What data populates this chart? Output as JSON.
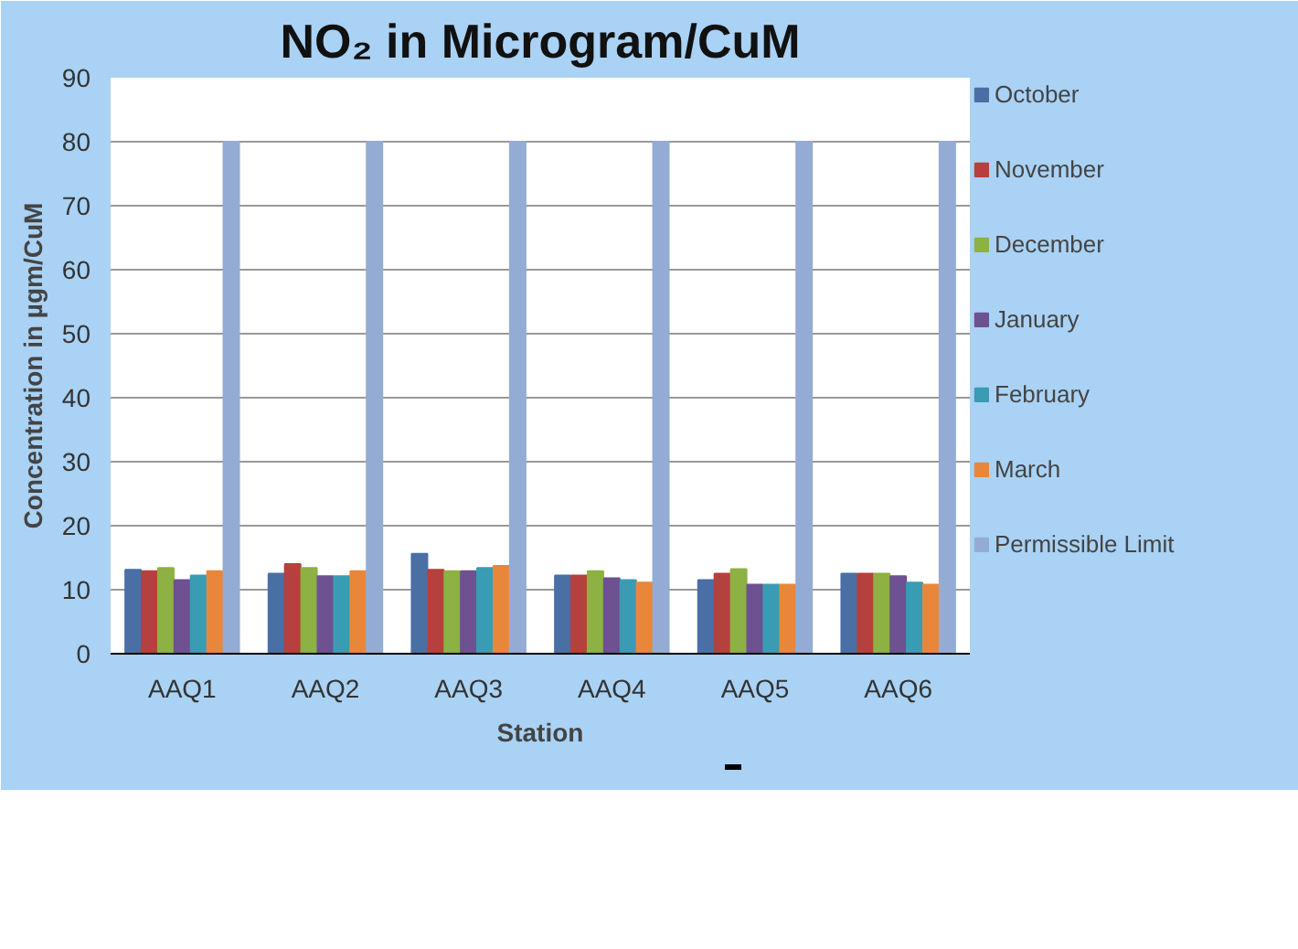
{
  "chart_data": {
    "type": "bar",
    "title": "NO₂ in Microgram/CuM",
    "xlabel": "Station",
    "ylabel": "Concentration in µgm/CuM",
    "categories": [
      "AAQ1",
      "AAQ2",
      "AAQ3",
      "AAQ4",
      "AAQ5",
      "AAQ6"
    ],
    "series": [
      {
        "name": "October",
        "color": "#4a6fa5",
        "values": [
          13.1,
          12.5,
          15.6,
          12.2,
          11.5,
          12.5
        ]
      },
      {
        "name": "November",
        "color": "#b5403d",
        "values": [
          12.9,
          14.0,
          13.1,
          12.2,
          12.5,
          12.5
        ]
      },
      {
        "name": "December",
        "color": "#8db143",
        "values": [
          13.4,
          13.4,
          12.9,
          12.9,
          13.2,
          12.5
        ]
      },
      {
        "name": "January",
        "color": "#6e5191",
        "values": [
          11.5,
          12.1,
          12.9,
          11.8,
          10.8,
          12.1
        ]
      },
      {
        "name": "February",
        "color": "#3a9bb5",
        "values": [
          12.2,
          12.1,
          13.4,
          11.5,
          10.8,
          11.1
        ]
      },
      {
        "name": "March",
        "color": "#e8873a",
        "values": [
          12.9,
          12.9,
          13.7,
          11.1,
          10.8,
          10.8
        ]
      },
      {
        "name": "Permissible Limit",
        "color": "#94acd3",
        "values": [
          80,
          80,
          80,
          80,
          80,
          80
        ]
      }
    ],
    "ylim": [
      0,
      90
    ],
    "yticks": [
      0,
      10,
      20,
      30,
      40,
      50,
      60,
      70,
      80,
      90
    ],
    "grid": "y",
    "legend": "right"
  }
}
